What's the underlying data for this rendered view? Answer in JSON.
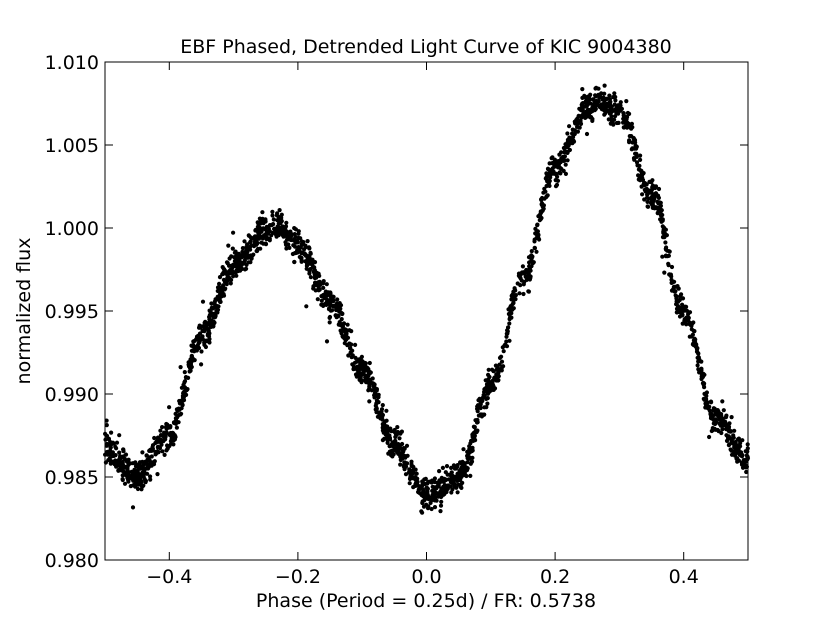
{
  "chart_data": {
    "type": "scatter",
    "title": "EBF Phased, Detrended Light Curve of KIC 9004380",
    "xlabel": "Phase (Period = 0.25d) / FR: 0.5738",
    "ylabel": "normalized flux",
    "xlim": [
      -0.5,
      0.5
    ],
    "ylim": [
      0.98,
      1.01
    ],
    "xticks": [
      -0.4,
      -0.2,
      0.0,
      0.2,
      0.4
    ],
    "xtick_labels": [
      "−0.4",
      "−0.2",
      "0.0",
      "0.2",
      "0.4"
    ],
    "yticks": [
      0.98,
      0.985,
      0.99,
      0.995,
      1.0,
      1.005,
      1.01
    ],
    "ytick_labels": [
      "0.980",
      "0.985",
      "0.990",
      "0.995",
      "1.000",
      "1.005",
      "1.010"
    ],
    "grid": false,
    "marker_color": "#000000",
    "series": [
      {
        "name": "light curve",
        "x": [
          -0.5,
          -0.45,
          -0.4,
          -0.35,
          -0.3,
          -0.25,
          -0.23,
          -0.2,
          -0.15,
          -0.1,
          -0.05,
          0.0,
          0.05,
          0.1,
          0.15,
          0.2,
          0.25,
          0.27,
          0.3,
          0.35,
          0.4,
          0.45,
          0.5
        ],
        "y": [
          0.9868,
          0.985,
          0.9875,
          0.9935,
          0.9978,
          0.9998,
          1.0,
          0.999,
          0.9955,
          0.9915,
          0.987,
          0.9838,
          0.985,
          0.9905,
          0.997,
          1.0035,
          1.0072,
          1.0078,
          1.007,
          1.002,
          0.995,
          0.9885,
          0.986
        ]
      }
    ]
  }
}
